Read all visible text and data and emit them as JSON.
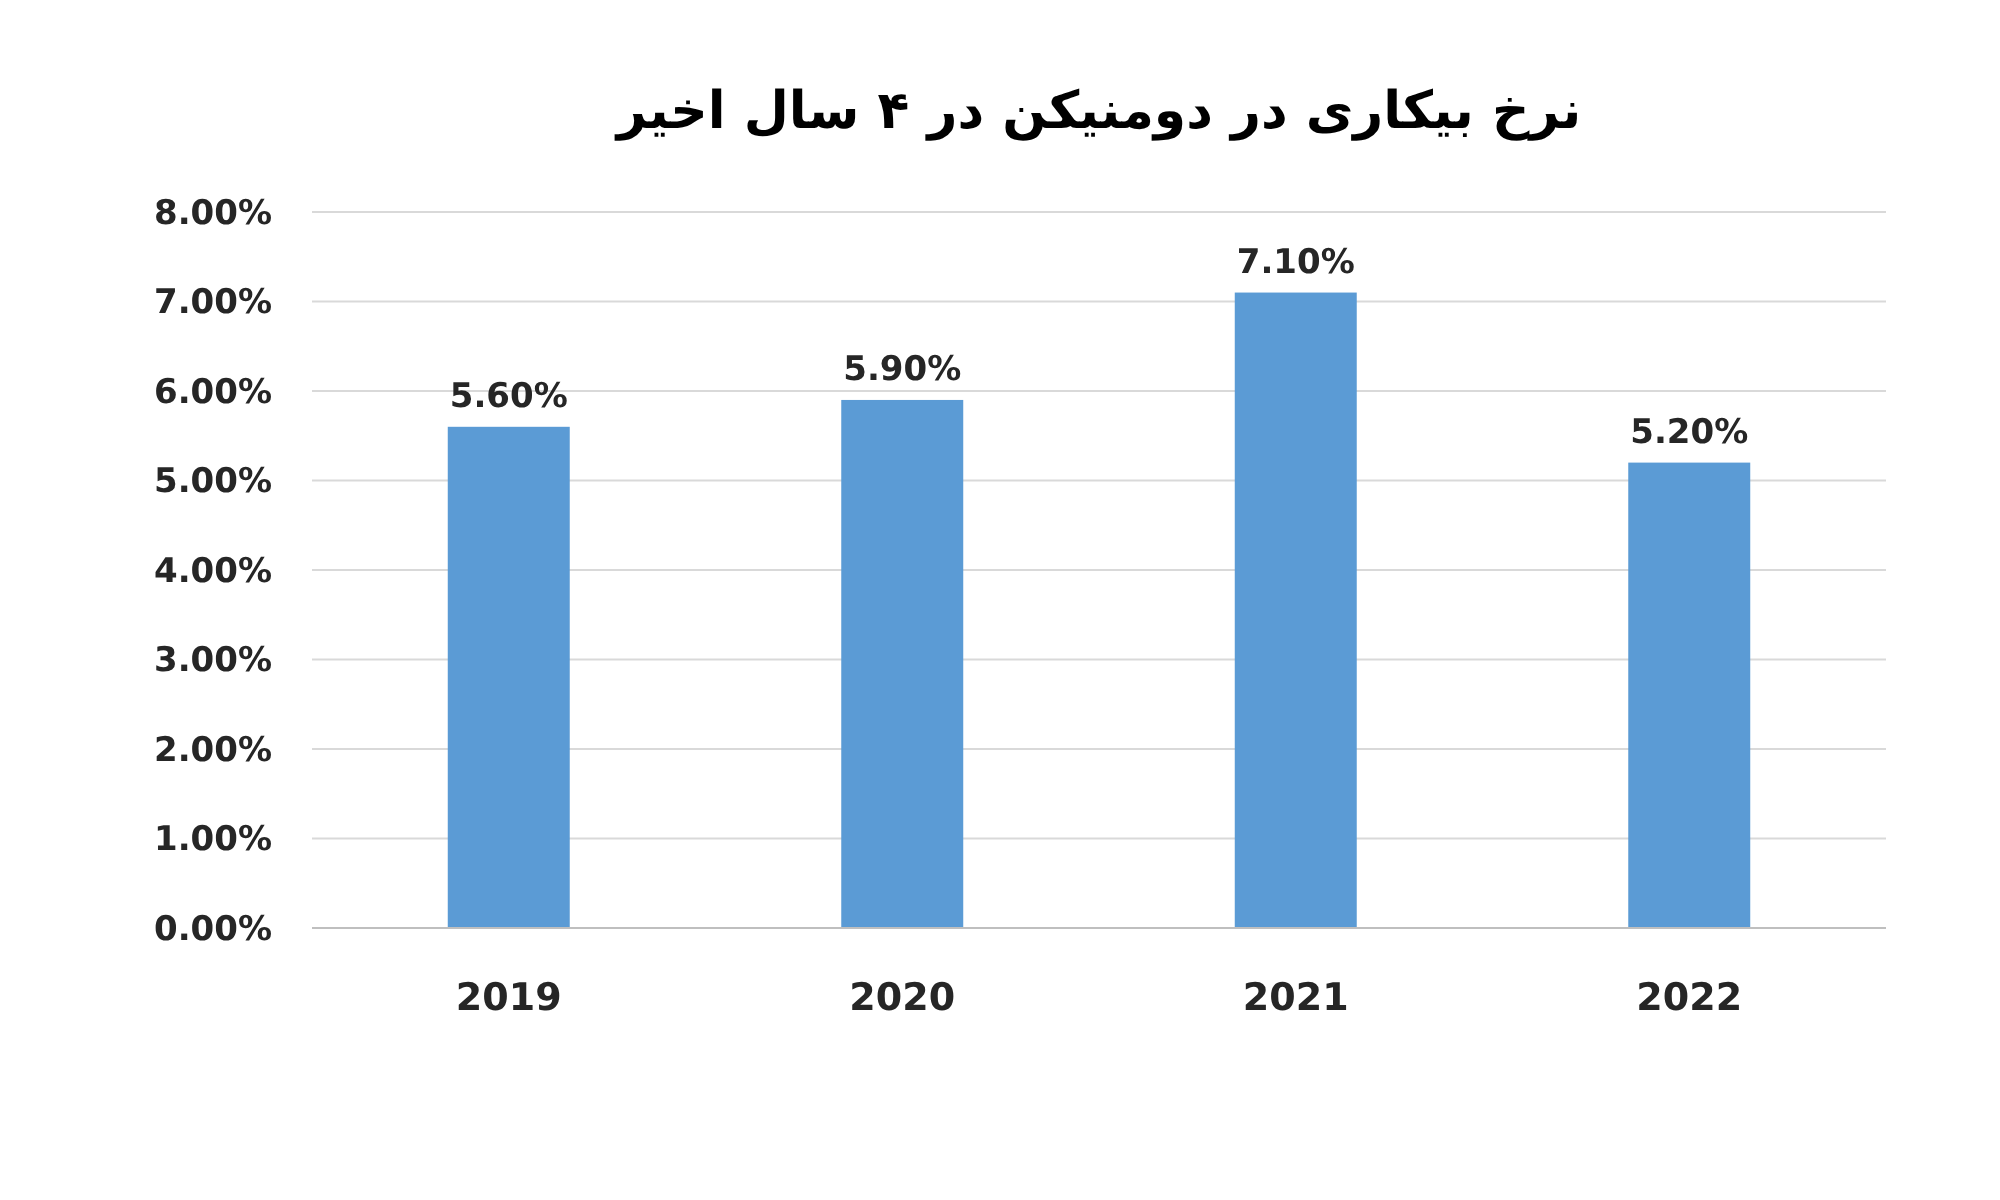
{
  "chart_data": {
    "type": "bar",
    "title": "نرخ بیکاری در دومنیکن در ۴ سال اخیر",
    "categories": [
      "2019",
      "2020",
      "2021",
      "2022"
    ],
    "values": [
      5.6,
      5.9,
      7.1,
      5.2
    ],
    "value_labels": [
      "5.60%",
      "5.90%",
      "7.10%",
      "5.20%"
    ],
    "color": "#5b9bd5",
    "ylim": [
      0,
      8
    ],
    "yticks": [
      {
        "value": 0,
        "label": "0.00%"
      },
      {
        "value": 1,
        "label": "1.00%"
      },
      {
        "value": 2,
        "label": "2.00%"
      },
      {
        "value": 3,
        "label": "3.00%"
      },
      {
        "value": 4,
        "label": "4.00%"
      },
      {
        "value": 5,
        "label": "5.00%"
      },
      {
        "value": 6,
        "label": "6.00%"
      },
      {
        "value": 7,
        "label": "7.00%"
      },
      {
        "value": 8,
        "label": "8.00%"
      }
    ],
    "grid": "y"
  }
}
